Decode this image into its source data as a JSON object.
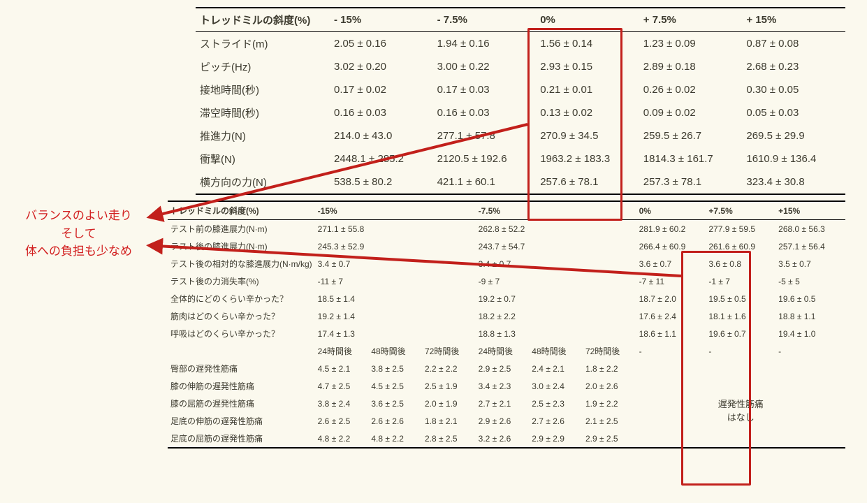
{
  "colors": {
    "highlight_box": "#c2201b",
    "annotation": "#d22020",
    "background": "#fbf9ee",
    "text": "#3d3b2f",
    "rule": "#000000"
  },
  "annotation": {
    "line1": "バランスのよい走り",
    "line2": "そして",
    "line3": "体への負担も少なめ"
  },
  "table1": {
    "header_label": "トレッドミルの斜度(%)",
    "columns": [
      "- 15%",
      "- 7.5%",
      "0%",
      "+ 7.5%",
      "+ 15%"
    ],
    "rows": [
      {
        "label": "ストライド(m)",
        "v": [
          "2.05 ± 0.16",
          "1.94 ± 0.16",
          "1.56 ± 0.14",
          "1.23 ± 0.09",
          "0.87 ± 0.08"
        ]
      },
      {
        "label": "ピッチ(Hz)",
        "v": [
          "3.02 ± 0.20",
          "3.00 ± 0.22",
          "2.93 ± 0.15",
          "2.89 ± 0.18",
          "2.68 ± 0.23"
        ]
      },
      {
        "label": "接地時間(秒)",
        "v": [
          "0.17 ± 0.02",
          "0.17 ± 0.03",
          "0.21 ± 0.01",
          "0.26 ± 0.02",
          "0.30 ± 0.05"
        ]
      },
      {
        "label": "滞空時間(秒)",
        "v": [
          "0.16 ± 0.03",
          "0.16 ± 0.03",
          "0.13 ± 0.02",
          "0.09 ± 0.02",
          "0.05 ± 0.03"
        ]
      },
      {
        "label": "推進力(N)",
        "v": [
          "214.0 ± 43.0",
          "277.1 ± 57.8",
          "270.9 ± 34.5",
          "259.5 ± 26.7",
          "269.5 ± 29.9"
        ]
      },
      {
        "label": "衝撃(N)",
        "v": [
          "2448.1 ± 285.2",
          "2120.5 ± 192.6",
          "1963.2 ± 183.3",
          "1814.3 ± 161.7",
          "1610.9 ± 136.4"
        ]
      },
      {
        "label": "横方向の力(N)",
        "v": [
          "538.5 ± 80.2",
          "421.1 ± 60.1",
          "257.6 ± 78.1",
          "257.3 ± 78.1",
          "323.4 ± 30.8"
        ]
      }
    ]
  },
  "table2": {
    "header_label": "トレッドミルの斜度(%)",
    "group_cols": [
      "-15%",
      "-7.5%",
      "0%",
      "+7.5%",
      "+15%"
    ],
    "upper_rows": [
      {
        "label": "テスト前の膝進展力(N·m)",
        "v": [
          "271.1 ± 55.8",
          "262.8 ± 52.2",
          "281.9 ± 60.2",
          "277.9 ± 59.5",
          "268.0 ± 56.3"
        ]
      },
      {
        "label": "テスト後の膝進展力(N·m)",
        "v": [
          "245.3 ± 52.9",
          "243.7 ± 54.7",
          "266.4 ± 60.9",
          "261.6 ± 60.9",
          "257.1 ± 56.4"
        ]
      },
      {
        "label": "テスト後の相対的な膝進展力(N·m/kg)",
        "v": [
          "3.4 ± 0.7",
          "3.4 ± 0.7",
          "3.6 ± 0.7",
          "3.6 ± 0.8",
          "3.5 ± 0.7"
        ]
      },
      {
        "label": "テスト後の力消失率(%)",
        "v": [
          "-11 ± 7",
          "-9 ± 7",
          "-7 ± 11",
          "-1 ± 7",
          "-5 ± 5"
        ]
      },
      {
        "label": "全体的にどのくらい辛かった？",
        "v": [
          "18.5 ± 1.4",
          "19.2 ± 0.7",
          "18.7 ± 2.0",
          "19.5 ± 0.5",
          "19.6 ± 0.5"
        ]
      },
      {
        "label": "筋肉はどのくらい辛かった？",
        "v": [
          "19.2 ± 1.4",
          "18.2 ± 2.2",
          "17.6 ± 2.4",
          "18.1 ± 1.6",
          "18.8 ± 1.1"
        ]
      },
      {
        "label": "呼吸はどのくらい辛かった？",
        "v": [
          "17.4 ± 1.3",
          "18.8 ± 1.3",
          "18.6 ± 1.1",
          "19.6 ± 0.7",
          "19.4 ± 1.0"
        ]
      }
    ],
    "sub_headers": [
      "24時間後",
      "48時間後",
      "72時間後",
      "24時間後",
      "48時間後",
      "72時間後",
      "-",
      "-",
      "-"
    ],
    "lower_rows": [
      {
        "label": "臀部の遅発性筋痛",
        "v": [
          "4.5 ± 2.1",
          "3.8 ± 2.5",
          "2.2 ± 2.2",
          "2.9 ± 2.5",
          "2.4 ± 2.1",
          "1.8 ± 2.2"
        ]
      },
      {
        "label": "膝の伸筋の遅発性筋痛",
        "v": [
          "4.7 ± 2.5",
          "4.5 ± 2.5",
          "2.5 ± 1.9",
          "3.4 ± 2.3",
          "3.0 ± 2.4",
          "2.0 ± 2.6"
        ]
      },
      {
        "label": "膝の屈筋の遅発性筋痛",
        "v": [
          "3.8 ± 2.4",
          "3.6 ± 2.5",
          "2.0 ± 1.9",
          "2.7 ± 2.1",
          "2.5 ± 2.3",
          "1.9 ± 2.2"
        ]
      },
      {
        "label": "足底の伸筋の遅発性筋痛",
        "v": [
          "2.6 ± 2.5",
          "2.6 ± 2.6",
          "1.8 ± 2.1",
          "2.9 ± 2.6",
          "2.7 ± 2.6",
          "2.1 ± 2.5"
        ]
      },
      {
        "label": "足底の屈筋の遅発性筋痛",
        "v": [
          "4.8 ± 2.2",
          "4.8 ± 2.2",
          "2.8 ± 2.5",
          "3.2 ± 2.6",
          "2.9 ± 2.9",
          "2.9 ± 2.5"
        ]
      }
    ],
    "right_note": {
      "line1": "遅発性筋痛",
      "line2": "はなし"
    }
  }
}
